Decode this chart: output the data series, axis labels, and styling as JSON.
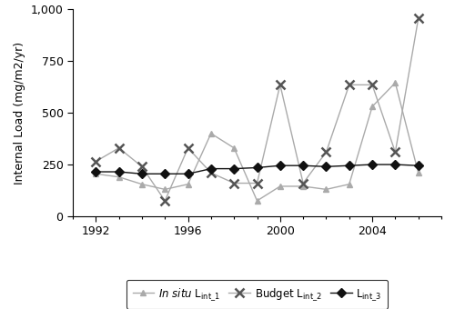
{
  "years": [
    1992,
    1993,
    1994,
    1995,
    1996,
    1997,
    1998,
    1999,
    2000,
    2001,
    2002,
    2003,
    2004,
    2005,
    2006
  ],
  "in_situ": [
    205,
    190,
    155,
    130,
    155,
    400,
    330,
    75,
    145,
    145,
    130,
    155,
    530,
    645,
    210
  ],
  "budget": [
    265,
    330,
    240,
    75,
    330,
    210,
    160,
    160,
    635,
    160,
    310,
    635,
    635,
    310,
    955
  ],
  "lint3": [
    215,
    215,
    205,
    205,
    205,
    230,
    230,
    235,
    245,
    245,
    240,
    245,
    250,
    250,
    245
  ],
  "in_situ_color": "#aaaaaa",
  "budget_color": "#aaaaaa",
  "lint3_color": "#111111",
  "ylabel": "Internal Load (mg/m2/yr)",
  "ylim": [
    0,
    1000
  ],
  "yticks": [
    0,
    250,
    500,
    750,
    1000
  ],
  "ytick_labels": [
    "0",
    "250",
    "500",
    "750",
    "1,000"
  ],
  "xlim": [
    1991.0,
    2007.0
  ],
  "xticks": [
    1992,
    1996,
    2000,
    2004
  ],
  "figsize": [
    5.0,
    3.4
  ],
  "dpi": 100
}
